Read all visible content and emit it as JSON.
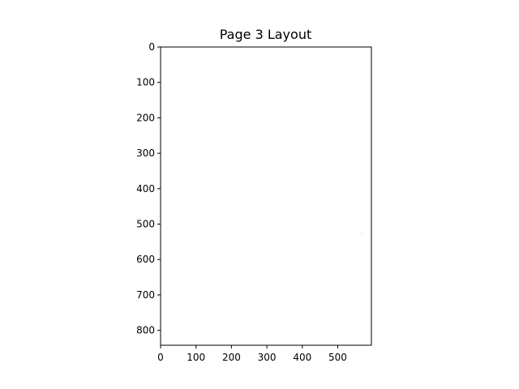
{
  "chart_data": {
    "type": "scatter",
    "title": "Page 3 Layout",
    "xlabel": "",
    "ylabel": "",
    "xlim": [
      0,
      595
    ],
    "ylim": [
      842,
      0
    ],
    "x_ticks": [
      0,
      100,
      200,
      300,
      400,
      500
    ],
    "y_ticks": [
      0,
      100,
      200,
      300,
      400,
      500,
      600,
      700,
      800
    ],
    "grid": false,
    "y_inverted": true,
    "series": [
      {
        "points": [
          {
            "x": 568,
            "y": 525
          },
          {
            "x": 568,
            "y": 526
          },
          {
            "x": 568,
            "y": 527
          }
        ],
        "color": "#d8d8d8"
      }
    ]
  }
}
